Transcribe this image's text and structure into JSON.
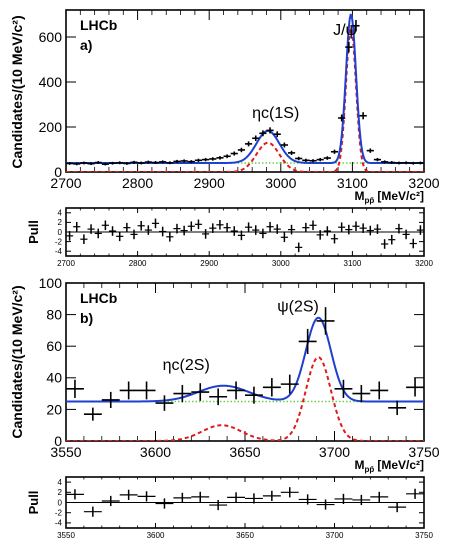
{
  "chart_data": [
    {
      "type": "scatter",
      "panel": "a",
      "label": "LHCb",
      "panel_tag": "a)",
      "ylabel": "Candidates/(10 MeV/c²)",
      "xlabel_main": "M",
      "xlabel_sub": "pp̄",
      "xlabel_units": "[MeV/c²]",
      "xlim": [
        2700,
        3200
      ],
      "ylim": [
        0,
        720
      ],
      "xticks": [
        2700,
        2800,
        2900,
        3000,
        3100,
        3200
      ],
      "yticks": [
        0,
        200,
        400,
        600
      ],
      "annotations": [
        {
          "text": "J/ψ",
          "x": 3073,
          "y": 610
        },
        {
          "text": "ηc(1S)",
          "x": 2960,
          "y": 240
        }
      ],
      "points": [
        [
          2705,
          38
        ],
        [
          2715,
          36
        ],
        [
          2725,
          40
        ],
        [
          2735,
          37
        ],
        [
          2745,
          42
        ],
        [
          2755,
          35
        ],
        [
          2765,
          39
        ],
        [
          2775,
          41
        ],
        [
          2785,
          38
        ],
        [
          2795,
          43
        ],
        [
          2805,
          40
        ],
        [
          2815,
          44
        ],
        [
          2825,
          42
        ],
        [
          2835,
          45
        ],
        [
          2845,
          41
        ],
        [
          2855,
          47
        ],
        [
          2865,
          49
        ],
        [
          2875,
          46
        ],
        [
          2885,
          52
        ],
        [
          2895,
          55
        ],
        [
          2905,
          58
        ],
        [
          2915,
          63
        ],
        [
          2925,
          70
        ],
        [
          2935,
          82
        ],
        [
          2945,
          98
        ],
        [
          2955,
          125
        ],
        [
          2965,
          150
        ],
        [
          2975,
          172
        ],
        [
          2985,
          185
        ],
        [
          2995,
          168
        ],
        [
          3005,
          120
        ],
        [
          3015,
          85
        ],
        [
          3025,
          60
        ],
        [
          3035,
          52
        ],
        [
          3045,
          50
        ],
        [
          3055,
          55
        ],
        [
          3065,
          62
        ],
        [
          3075,
          90
        ],
        [
          3085,
          240
        ],
        [
          3095,
          555
        ],
        [
          3105,
          650
        ],
        [
          3115,
          250
        ],
        [
          3125,
          95
        ],
        [
          3135,
          55
        ],
        [
          3145,
          45
        ],
        [
          3155,
          42
        ],
        [
          3165,
          40
        ],
        [
          3175,
          41
        ],
        [
          3185,
          39
        ],
        [
          3195,
          40
        ]
      ],
      "total_fit": {
        "bg": 40,
        "peaks": [
          {
            "mean": 2982,
            "sigma": 16,
            "amp": 143
          },
          {
            "mean": 3098,
            "sigma": 7,
            "amp": 660
          }
        ]
      },
      "signal_fit": {
        "peaks": [
          {
            "mean": 2982,
            "sigma": 16,
            "amp": 130
          },
          {
            "mean": 3098,
            "sigma": 7,
            "amp": 640
          }
        ]
      },
      "background_level": 40,
      "colors": {
        "total": "#1f3fcf",
        "signal": "#e01b1b",
        "background": "#6ad24a",
        "points": "#000000"
      }
    },
    {
      "type": "scatter",
      "panel": "a-pull",
      "ylabel": "Pull",
      "xlim": [
        2700,
        3200
      ],
      "ylim": [
        -5,
        5
      ],
      "xticks": [
        2700,
        2800,
        2900,
        3000,
        3100,
        3200
      ],
      "yticks": [
        -4,
        -2,
        0,
        2,
        4
      ],
      "values": [
        -0.8,
        1.1,
        -1.5,
        0.6,
        -0.3,
        1.4,
        0.2,
        -0.9,
        0.9,
        -0.5,
        1.3,
        0.4,
        1.8,
        0.1,
        -1.0,
        0.7,
        0.3,
        1.2,
        1.6,
        -0.4,
        0.8,
        1.5,
        0.9,
        0.2,
        -0.7,
        1.0,
        0.4,
        -0.3,
        1.1,
        0.6,
        -1.1,
        0.5,
        -3.2,
        0.9,
        1.4,
        -0.6,
        0.2,
        -1.4,
        1.0,
        0.5,
        1.2,
        0.8,
        0.3,
        0.6,
        -2.5,
        -1.6,
        0.7,
        -0.5,
        -2.4,
        0.4
      ],
      "x": [
        2705,
        2715,
        2725,
        2735,
        2745,
        2755,
        2765,
        2775,
        2785,
        2795,
        2805,
        2815,
        2825,
        2835,
        2845,
        2855,
        2865,
        2875,
        2885,
        2895,
        2905,
        2915,
        2925,
        2935,
        2945,
        2955,
        2965,
        2975,
        2985,
        2995,
        3005,
        3015,
        3025,
        3035,
        3045,
        3055,
        3065,
        3075,
        3085,
        3095,
        3105,
        3115,
        3125,
        3135,
        3145,
        3155,
        3165,
        3175,
        3185,
        3195
      ]
    },
    {
      "type": "scatter",
      "panel": "b",
      "label": "LHCb",
      "panel_tag": "b)",
      "ylabel": "Candidates/(10 MeV/c²)",
      "xlabel_main": "M",
      "xlabel_sub": "pp̄",
      "xlabel_units": "[MeV/c²]",
      "xlim": [
        3550,
        3750
      ],
      "ylim": [
        0,
        100
      ],
      "xticks": [
        3550,
        3600,
        3650,
        3700,
        3750
      ],
      "yticks": [
        0,
        20,
        40,
        60,
        80,
        100
      ],
      "annotations": [
        {
          "text": "ψ(2S)",
          "x": 3668,
          "y": 82
        },
        {
          "text": "ηc(2S)",
          "x": 3604,
          "y": 45
        }
      ],
      "points": [
        [
          3555,
          33
        ],
        [
          3565,
          17
        ],
        [
          3575,
          26
        ],
        [
          3585,
          32
        ],
        [
          3595,
          32
        ],
        [
          3605,
          24
        ],
        [
          3615,
          30
        ],
        [
          3625,
          31
        ],
        [
          3635,
          28
        ],
        [
          3645,
          32
        ],
        [
          3655,
          29
        ],
        [
          3665,
          34
        ],
        [
          3675,
          36
        ],
        [
          3685,
          63
        ],
        [
          3695,
          76
        ],
        [
          3705,
          33
        ],
        [
          3715,
          30
        ],
        [
          3725,
          32
        ],
        [
          3735,
          21
        ],
        [
          3745,
          34
        ]
      ],
      "total_fit": {
        "bg": 25,
        "peaks": [
          {
            "mean": 3638,
            "sigma": 14,
            "amp": 10
          },
          {
            "mean": 3691,
            "sigma": 7,
            "amp": 53
          }
        ]
      },
      "signal_fit": {
        "peaks": [
          {
            "mean": 3637,
            "sigma": 11,
            "amp": 10
          },
          {
            "mean": 3691,
            "sigma": 7,
            "amp": 53
          }
        ]
      },
      "background_level": 25,
      "colors": {
        "total": "#1f3fcf",
        "signal": "#e01b1b",
        "background": "#6ad24a",
        "points": "#000000"
      }
    },
    {
      "type": "scatter",
      "panel": "b-pull",
      "ylabel": "Pull",
      "xlim": [
        3550,
        3750
      ],
      "ylim": [
        -5,
        5
      ],
      "xticks": [
        3550,
        3600,
        3650,
        3700,
        3750
      ],
      "yticks": [
        -4,
        -2,
        0,
        2,
        4
      ],
      "x": [
        3555,
        3565,
        3575,
        3585,
        3595,
        3605,
        3615,
        3625,
        3635,
        3645,
        3655,
        3665,
        3675,
        3685,
        3695,
        3705,
        3715,
        3725,
        3735,
        3745
      ],
      "values": [
        1.6,
        -1.8,
        0.3,
        1.5,
        1.2,
        -0.2,
        0.9,
        1.1,
        -0.5,
        1.0,
        0.8,
        1.3,
        2.0,
        0.6,
        -0.4,
        0.7,
        0.5,
        1.1,
        -0.9,
        1.7
      ]
    }
  ]
}
